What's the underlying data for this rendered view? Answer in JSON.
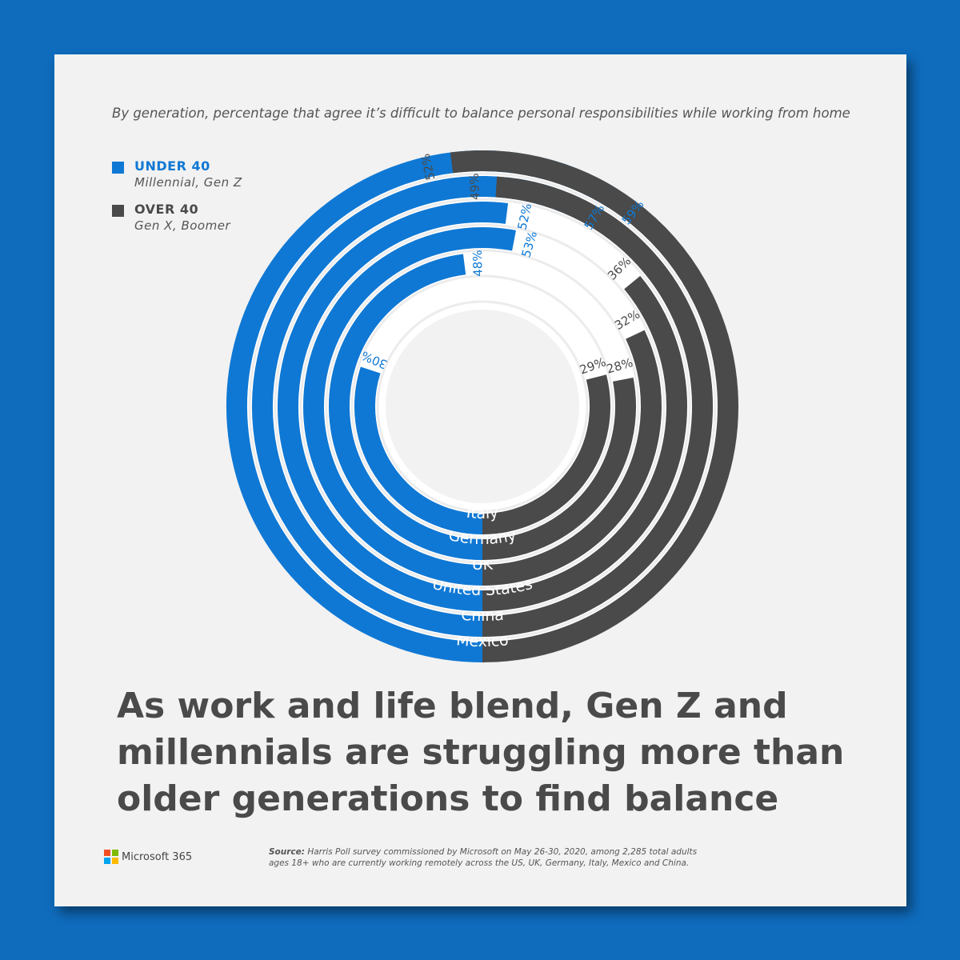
{
  "subtitle": "By generation, percentage that agree it’s difficult to balance personal responsibilities while working from home",
  "headline": "As work and life blend, Gen Z and millennials are struggling more than older generations to find balance",
  "legend": {
    "under": {
      "label": "UNDER 40",
      "sub": "Millennial, Gen Z",
      "color": "#0f78d4"
    },
    "over": {
      "label": "OVER 40",
      "sub": "Gen X, Boomer",
      "color": "#4a4a4a"
    }
  },
  "source": {
    "label": "Source:",
    "text": "Harris Poll survey commissioned by Microsoft on May 26-30, 2020, among 2,285 total adults ages 18+ who are currently working remotely across the US, UK, Germany, Italy, Mexico and China."
  },
  "brand": {
    "name": "Microsoft 365",
    "colors": [
      "#f25022",
      "#7fba00",
      "#00a4ef",
      "#ffb900"
    ]
  },
  "chart_data": {
    "type": "radial-bar",
    "title": "By generation, percentage that agree it’s difficult to balance personal responsibilities while working from home",
    "categories": [
      "Mexico",
      "China",
      "United States",
      "UK",
      "Germany",
      "Italy"
    ],
    "series": [
      {
        "name": "UNDER 40",
        "color": "#0f78d4",
        "values": [
          59,
          57,
          52,
          53,
          48,
          30
        ]
      },
      {
        "name": "OVER 40",
        "color": "#4a4a4a",
        "values": [
          52,
          49,
          36,
          32,
          28,
          29
        ]
      }
    ],
    "value_labels": {
      "UNDER 40": [
        "59%",
        "57%",
        "52%",
        "53%",
        "48%",
        "30%"
      ],
      "OVER 40": [
        "52%",
        "49%",
        "36%",
        "32%",
        "28%",
        "29%"
      ]
    }
  }
}
